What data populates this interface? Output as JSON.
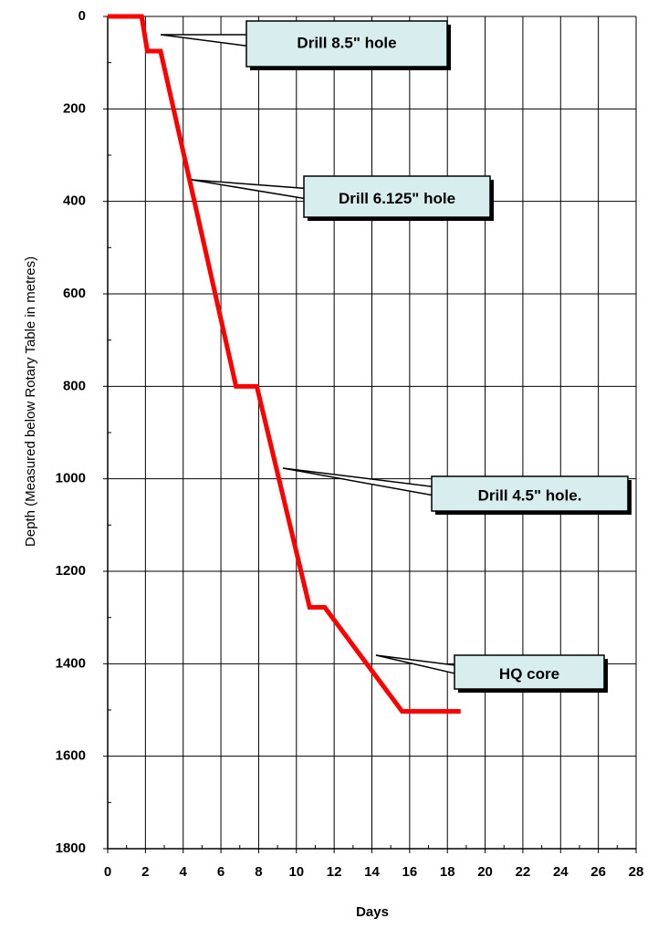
{
  "chart_data": {
    "type": "line",
    "xlabel": "Days",
    "ylabel": "Depth (Measured below Rotary Table in metres)",
    "x": [
      0,
      1.8,
      2.1,
      2.8,
      6.8,
      7.9,
      10.7,
      11.5,
      15.6,
      18.7
    ],
    "series": [
      {
        "name": "Depth",
        "color": "#ff0000",
        "values": [
          0,
          0,
          75,
          75,
          800,
          800,
          1278,
          1278,
          1503,
          1503
        ]
      }
    ],
    "xlim": [
      0,
      28
    ],
    "xticks": [
      0,
      2,
      4,
      6,
      8,
      10,
      12,
      14,
      16,
      18,
      20,
      22,
      24,
      26,
      28
    ],
    "ylim": [
      0,
      1800
    ],
    "yticks": [
      0,
      200,
      400,
      600,
      800,
      1000,
      1200,
      1400,
      1600,
      1800
    ],
    "y_reversed": true,
    "grid": true,
    "annotations": [
      "Drill 8.5\" hole",
      "Drill 6.125\" hole",
      "Drill 4.5\" hole.",
      "HQ core"
    ]
  }
}
